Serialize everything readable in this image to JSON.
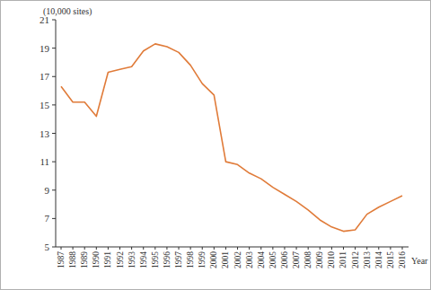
{
  "chart_data": {
    "type": "line",
    "y_label": "(10,000 sites)",
    "x_label": "Year",
    "categories": [
      "1987",
      "1988",
      "1989",
      "1990",
      "1991",
      "1992",
      "1993",
      "1994",
      "1995",
      "1996",
      "1997",
      "1998",
      "1999",
      "2000",
      "2001",
      "2002",
      "2003",
      "2004",
      "2005",
      "2006",
      "2007",
      "2008",
      "2009",
      "2010",
      "2011",
      "2012",
      "2013",
      "2014",
      "2015",
      "2016"
    ],
    "values": [
      16.3,
      15.2,
      15.2,
      14.2,
      17.3,
      17.5,
      17.7,
      18.8,
      19.3,
      19.1,
      18.7,
      17.8,
      16.5,
      15.7,
      11.0,
      10.8,
      10.2,
      9.8,
      9.2,
      8.7,
      8.2,
      7.6,
      6.9,
      6.4,
      6.1,
      6.2,
      7.3,
      7.8,
      8.2,
      8.6
    ],
    "color": "#e07b39",
    "ylim": [
      5,
      21
    ],
    "yticks": [
      5,
      7,
      9,
      11,
      13,
      15,
      17,
      19,
      21
    ],
    "grid": false
  }
}
